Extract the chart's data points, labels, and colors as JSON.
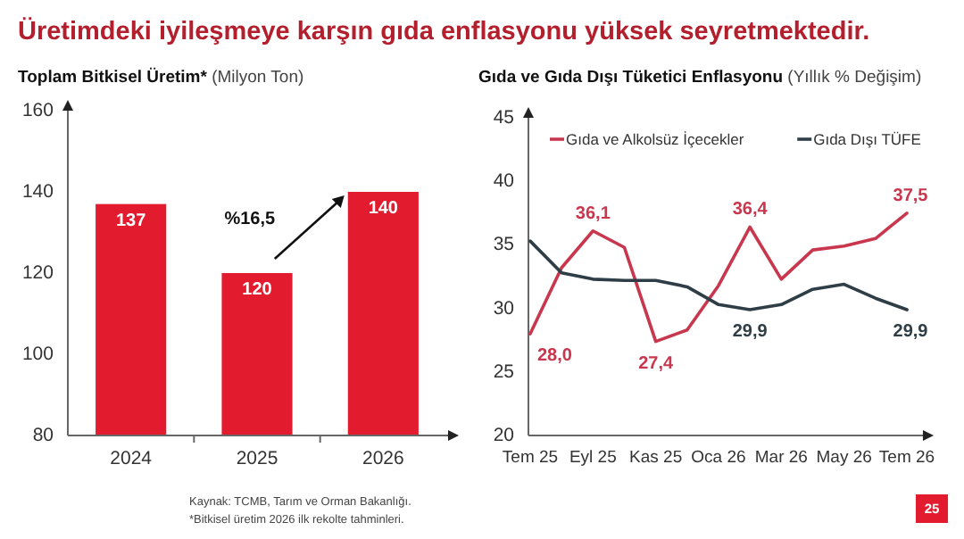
{
  "chart_data": [
    {
      "type": "bar",
      "title": "Toplam Bitkisel Üretim*",
      "ylabel": "(Milyon Ton)",
      "categories": [
        "2024",
        "2025",
        "2026"
      ],
      "values": [
        137,
        120,
        140
      ],
      "color": "#e31b2f",
      "ylim": [
        80,
        160
      ],
      "yticks": [
        80,
        100,
        120,
        140,
        160
      ],
      "data_labels": true,
      "grid": false,
      "annotations": [
        "%16,5"
      ]
    },
    {
      "type": "line",
      "title": "Gıda ve Gıda Dışı Tüketici Enflasyonu",
      "ylabel": "(Yıllık % Değişim)",
      "categories": [
        "Tem 25",
        null,
        "Eyl 25",
        null,
        "Kas 25",
        null,
        "Oca 26",
        null,
        "Mar 26",
        null,
        "May 26",
        null,
        "Tem 26"
      ],
      "ylim": [
        20,
        45
      ],
      "yticks": [
        20,
        25,
        30,
        35,
        40,
        45
      ],
      "grid": false,
      "legend": "top",
      "marker": "none",
      "line_style": "solid",
      "series": [
        {
          "name": "Gıda ve Alkolsüz İçecekler",
          "color": "#c8374e",
          "values": [
            28.0,
            33.2,
            36.1,
            34.8,
            27.4,
            28.3,
            31.8,
            36.4,
            32.3,
            34.6,
            34.9,
            35.5,
            37.5
          ],
          "value_labels": [
            "28,0",
            null,
            "36,1",
            null,
            "27,4",
            null,
            null,
            "36,4",
            null,
            null,
            null,
            null,
            "37,5"
          ]
        },
        {
          "name": "Gıda Dışı TÜFE",
          "color": "#2f3e46",
          "values": [
            35.3,
            32.8,
            32.3,
            32.2,
            32.2,
            31.7,
            30.3,
            29.9,
            30.3,
            31.5,
            31.9,
            30.8,
            29.9
          ],
          "value_labels": [
            null,
            null,
            null,
            null,
            null,
            null,
            null,
            "29,9",
            null,
            null,
            null,
            null,
            "29,9"
          ]
        }
      ]
    },
    {
      "type": "other",
      "title": "Üretimdeki iyileşmeye karşın gıda enflasyonu yüksek seyretmektedir.",
      "annotations": [
        "Kaynak: TCMB, Tarım ve Orman Bakanlığı.",
        "*Bitkisel üretim 2026 ilk rekolte tahminleri.",
        "25"
      ]
    }
  ]
}
